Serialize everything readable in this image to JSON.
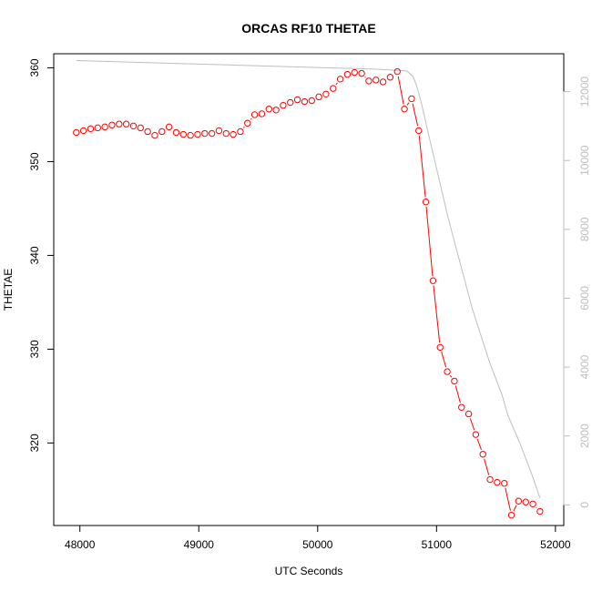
{
  "chart_data": {
    "type": "line",
    "title": "ORCAS RF10 THETAE",
    "xlabel": "UTC Seconds",
    "ylabel": "THETAE",
    "xlim": [
      47780,
      52070
    ],
    "ylim": [
      311.2,
      361.5
    ],
    "y2lim": [
      -600,
      13100
    ],
    "x_ticks": [
      48000,
      49000,
      50000,
      51000,
      52000
    ],
    "y_ticks": [
      320,
      330,
      340,
      350,
      360
    ],
    "y2_ticks": [
      0,
      2000,
      4000,
      6000,
      8000,
      10000,
      12000
    ],
    "grid": false,
    "colors": {
      "primary": "#ff0000",
      "secondary": "#bebebe",
      "axis": "#000000"
    },
    "series": [
      {
        "role": "primary-points",
        "axis": "left",
        "style": "points+line",
        "x": [
          47970,
          48030,
          48090,
          48150,
          48210,
          48270,
          48330,
          48390,
          48450,
          48510,
          48570,
          48630,
          48690,
          48750,
          48810,
          48870,
          48930,
          48990,
          49050,
          49110,
          49170,
          49230,
          49290,
          49350,
          49410,
          49470,
          49530,
          49590,
          49650,
          49710,
          49770,
          49830,
          49890,
          49950,
          50010,
          50070,
          50130,
          50190,
          50250,
          50310,
          50370,
          50430,
          50490,
          50550,
          50610,
          50670,
          50730,
          50790,
          50850,
          50910,
          50970,
          51030,
          51090,
          51150,
          51210,
          51270,
          51330,
          51390,
          51450,
          51510,
          51570,
          51630,
          51690,
          51750,
          51810,
          51870
        ],
        "y": [
          353.1,
          353.3,
          353.5,
          353.6,
          353.7,
          353.9,
          354.0,
          354.0,
          353.8,
          353.6,
          353.2,
          352.8,
          353.2,
          353.7,
          353.1,
          352.9,
          352.8,
          352.9,
          353.0,
          353.0,
          353.3,
          353.0,
          352.9,
          353.2,
          354.1,
          355.0,
          355.1,
          355.6,
          355.5,
          356.0,
          356.3,
          356.6,
          356.4,
          356.5,
          356.9,
          357.2,
          357.8,
          358.8,
          359.3,
          359.5,
          359.4,
          358.6,
          358.7,
          358.5,
          359.0,
          359.6,
          355.6,
          356.7,
          353.3,
          345.7,
          337.3,
          330.2,
          327.6,
          326.6,
          323.8,
          323.1,
          320.9,
          318.8,
          316.1,
          315.8,
          315.7,
          312.3,
          313.8,
          313.7,
          313.5,
          312.7
        ]
      },
      {
        "role": "secondary-line",
        "axis": "right",
        "style": "line",
        "x": [
          47970,
          48500,
          49000,
          49500,
          50000,
          50500,
          50750,
          50800,
          50830,
          50870,
          50950,
          51100,
          51300,
          51450,
          51550,
          51600,
          51700,
          51800,
          51870
        ],
        "y": [
          12900,
          12850,
          12800,
          12750,
          12700,
          12650,
          12600,
          12450,
          12200,
          11700,
          10500,
          8300,
          5700,
          4100,
          3200,
          2600,
          1800,
          900,
          200
        ]
      }
    ]
  }
}
